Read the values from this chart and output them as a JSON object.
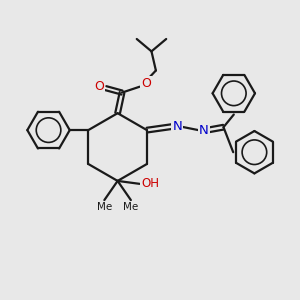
{
  "bg_color": "#e8e8e8",
  "bond_color": "#1a1a1a",
  "bond_width": 1.6,
  "O_color": "#cc0000",
  "N_color": "#0000cc",
  "text_color": "#1a1a1a",
  "figsize": [
    3.0,
    3.0
  ],
  "dpi": 100,
  "xlim": [
    0,
    10
  ],
  "ylim": [
    0,
    10
  ]
}
